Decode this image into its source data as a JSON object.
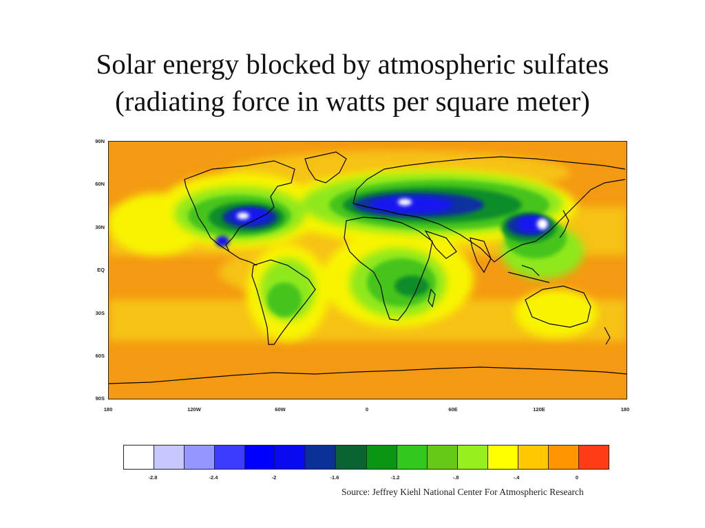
{
  "title": {
    "line1": "Solar energy blocked by atmospheric sulfates",
    "line2": "(radiating force in watts per square meter)"
  },
  "map": {
    "lat_labels": [
      "90N",
      "60N",
      "30N",
      "EQ",
      "30S",
      "60S",
      "90S"
    ],
    "lon_labels": [
      "180",
      "120W",
      "60W",
      "0",
      "60E",
      "120E",
      "180"
    ]
  },
  "colorbar": {
    "colors": [
      "#ffffff",
      "#c8c8ff",
      "#9696ff",
      "#3c3cff",
      "#0000ff",
      "#0a0af0",
      "#0a3296",
      "#0a6432",
      "#0a9614",
      "#32c81e",
      "#64c814",
      "#96f01e",
      "#ffff00",
      "#ffc800",
      "#ff9600",
      "#ff3c14"
    ],
    "labels": [
      "-2.8",
      "-2.4",
      "-2",
      "-1.6",
      "-1.2",
      "-.8",
      "-.4",
      "0"
    ]
  },
  "source": "Source: Jeffrey Kiehl National Center For Atmospheric Research"
}
